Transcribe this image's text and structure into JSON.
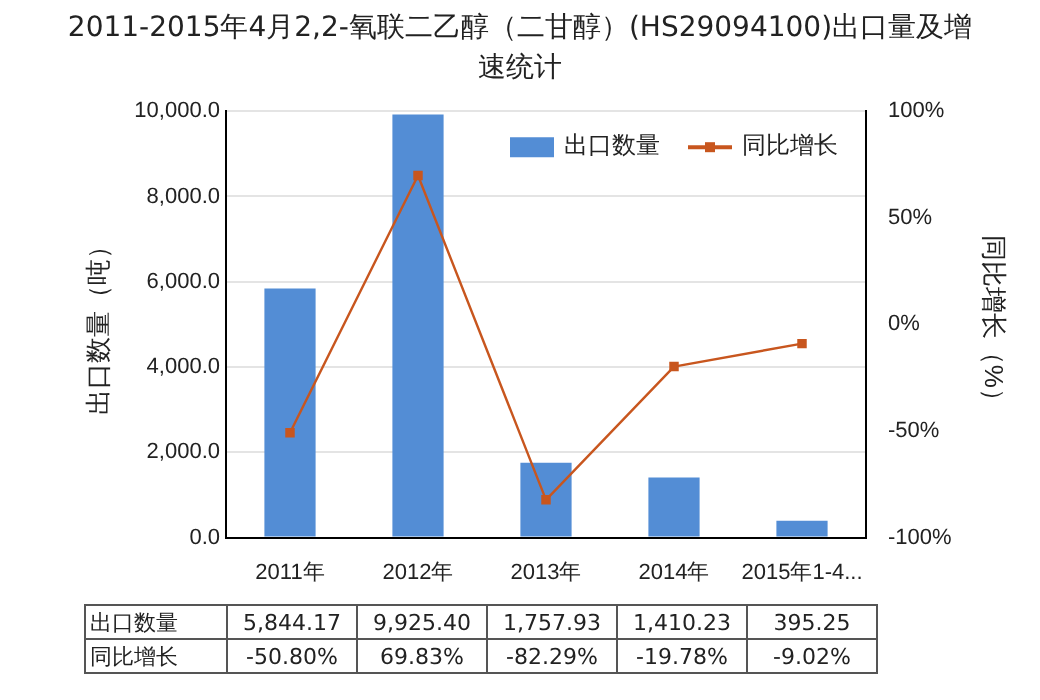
{
  "chart_data": {
    "type": "bar",
    "title": "2011-2015年4月2,2-氧联二乙醇（二甘醇）(HS29094100)出口量及增速统计",
    "categories": [
      "2011年",
      "2012年",
      "2013年",
      "2014年",
      "2015年1-4..."
    ],
    "series": [
      {
        "name": "出口数量",
        "color": "#538dd5",
        "values": [
          5844.17,
          9925.4,
          1757.93,
          1410.23,
          395.25
        ],
        "value_labels": [
          "5,844.17",
          "9,925.40",
          "1,757.93",
          "1,410.23",
          "395.25"
        ]
      },
      {
        "name": "同比增长",
        "type": "line",
        "axis": "y2",
        "color": "#c8561e",
        "values": [
          -50.8,
          69.83,
          -82.29,
          -19.78,
          -9.02
        ],
        "value_labels": [
          "-50.80%",
          "69.83%",
          "-82.29%",
          "-19.78%",
          "-9.02%"
        ]
      }
    ],
    "ylabel": "出口数量（吨）",
    "y2label": "同比增长（%）",
    "ylim": [
      0,
      10000
    ],
    "yticks": [
      {
        "value": 0,
        "label": "0.0"
      },
      {
        "value": 2000,
        "label": "2,000.0"
      },
      {
        "value": 4000,
        "label": "4,000.0"
      },
      {
        "value": 6000,
        "label": "6,000.0"
      },
      {
        "value": 8000,
        "label": "8,000.0"
      },
      {
        "value": 10000,
        "label": "10,000.0"
      }
    ],
    "y2lim": [
      -100,
      100
    ],
    "y2ticks": [
      {
        "value": -100,
        "label": "-100%"
      },
      {
        "value": -50,
        "label": "-50%"
      },
      {
        "value": 0,
        "label": "0%"
      },
      {
        "value": 50,
        "label": "50%"
      },
      {
        "value": 100,
        "label": "100%"
      }
    ],
    "grid": "y",
    "legend": "top right",
    "marker": "square",
    "line_style": "solid"
  }
}
